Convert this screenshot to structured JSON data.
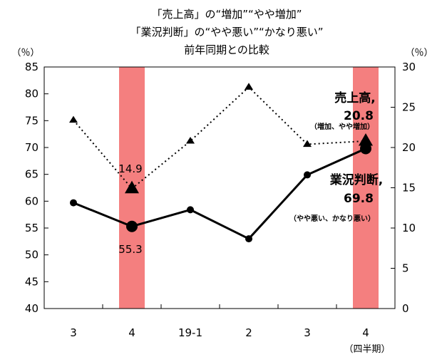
{
  "chart_data": {
    "type": "line",
    "title_lines": [
      "「売上高」の“増加”“やや増加”",
      "「業況判断」の“やや悪い”“かなり悪い”",
      "前年同期との比較"
    ],
    "categories": [
      "3",
      "4",
      "19-1",
      "2",
      "3",
      "4"
    ],
    "x_unit_label": "（四半期）",
    "left_axis": {
      "unit": "（％）",
      "min": 40,
      "max": 85,
      "step": 5,
      "ticks": [
        "40",
        "45",
        "50",
        "55",
        "60",
        "65",
        "70",
        "75",
        "80",
        "85"
      ]
    },
    "right_axis": {
      "unit": "（％）",
      "min": 0,
      "max": 30,
      "step": 5,
      "ticks": [
        "0",
        "5",
        "10",
        "15",
        "20",
        "25",
        "30"
      ]
    },
    "highlight_categories": [
      1,
      5
    ],
    "highlight_color": "#f47f7f",
    "series": [
      {
        "name": "業況判断",
        "axis": "left",
        "style": "solid",
        "values": [
          59.7,
          55.3,
          58.4,
          53.0,
          64.9,
          69.8
        ],
        "color": "#000000"
      },
      {
        "name": "売上高",
        "axis": "right",
        "style": "dotted",
        "values": [
          23.4,
          14.9,
          20.8,
          27.5,
          20.4,
          20.8
        ],
        "color": "#000000"
      }
    ],
    "annotations": {
      "sales_name": "売上高,",
      "sales_value": "20.8",
      "sales_note": "（増加、やや増加）",
      "business_name": "業況判断,",
      "business_value": "69.8",
      "business_note": "（やや悪い、かなり悪い）",
      "label_1": "14.9",
      "label_2": "55.3"
    }
  }
}
